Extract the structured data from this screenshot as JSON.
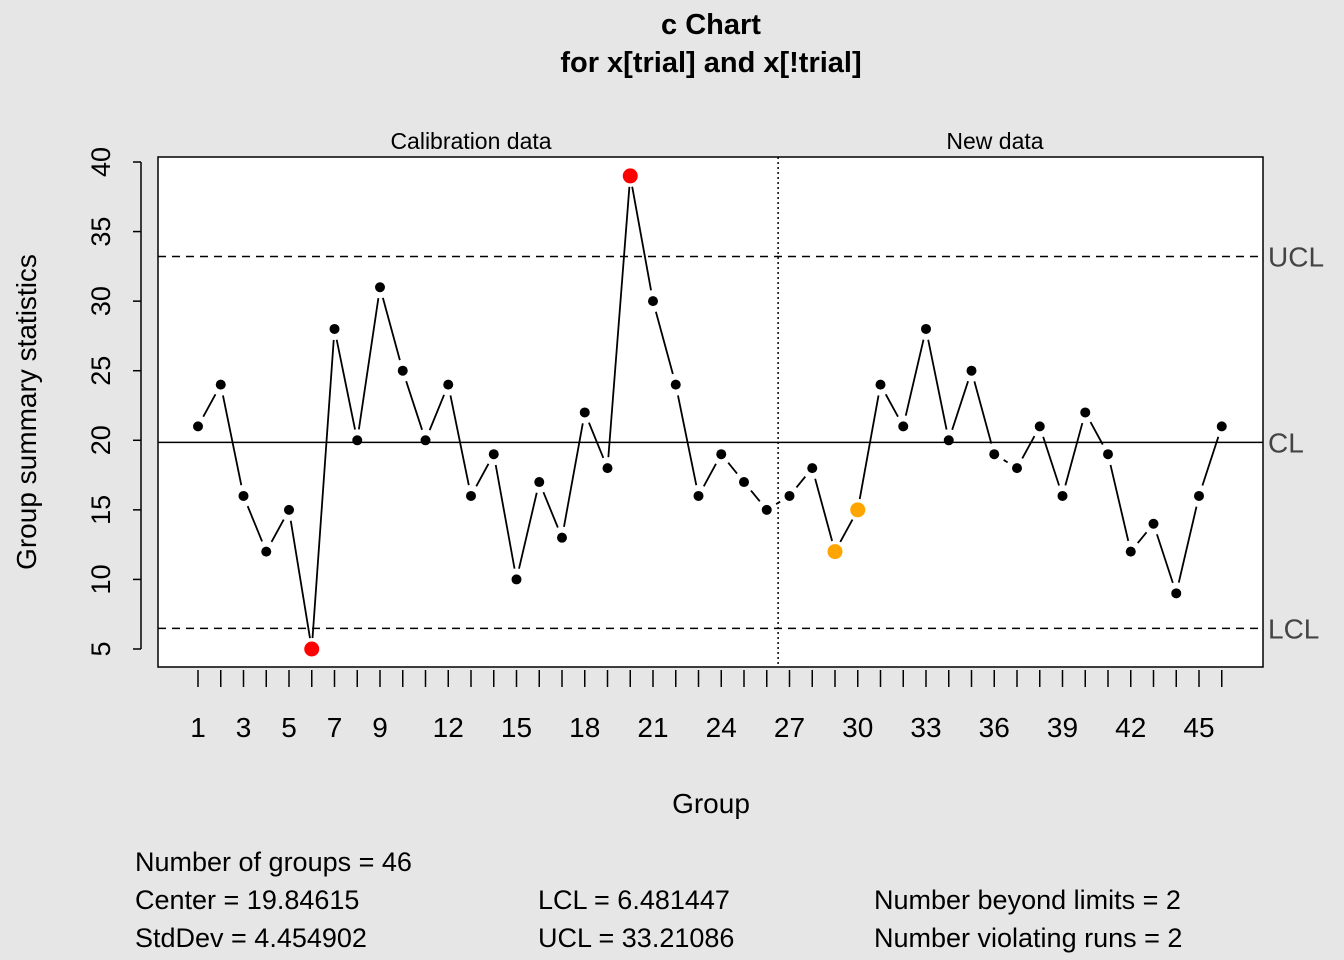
{
  "chart_data": {
    "type": "line",
    "title": "c Chart",
    "subtitle": "for x[trial] and x[!trial]",
    "xlabel": "Group",
    "ylabel": "Group summary statistics",
    "ylim": [
      5,
      40
    ],
    "yticks": [
      5,
      10,
      15,
      20,
      25,
      30,
      35,
      40
    ],
    "xtick_labels": [
      1,
      3,
      5,
      7,
      9,
      12,
      15,
      18,
      21,
      24,
      27,
      30,
      33,
      36,
      39,
      42,
      45
    ],
    "sections": [
      "Calibration data",
      "New data"
    ],
    "calibration_groups": 26,
    "x": [
      1,
      2,
      3,
      4,
      5,
      6,
      7,
      8,
      9,
      10,
      11,
      12,
      13,
      14,
      15,
      16,
      17,
      18,
      19,
      20,
      21,
      22,
      23,
      24,
      25,
      26,
      27,
      28,
      29,
      30,
      31,
      32,
      33,
      34,
      35,
      36,
      37,
      38,
      39,
      40,
      41,
      42,
      43,
      44,
      45,
      46
    ],
    "values": [
      21,
      24,
      16,
      12,
      15,
      5,
      28,
      20,
      31,
      25,
      20,
      24,
      16,
      19,
      10,
      17,
      13,
      22,
      18,
      39,
      30,
      24,
      16,
      19,
      17,
      15,
      16,
      18,
      12,
      15,
      24,
      21,
      28,
      20,
      25,
      19,
      18,
      21,
      16,
      22,
      19,
      12,
      14,
      9,
      16,
      21
    ],
    "beyond_limits": [
      6,
      20
    ],
    "violating_runs": [
      29,
      30
    ],
    "limits": {
      "UCL": 33.21086,
      "CL": 19.84615,
      "LCL": 6.481447
    },
    "limit_labels": {
      "UCL": "UCL",
      "CL": "CL",
      "LCL": "LCL"
    },
    "colors": {
      "point": "#000000",
      "beyond": "#ff0000",
      "violating": "#ffa500",
      "background": "#e6e6e6"
    }
  },
  "stats": {
    "groups": "Number of groups = 46",
    "center": "Center = 19.84615",
    "stddev": "StdDev = 4.454902",
    "lcl": "LCL = 6.481447",
    "ucl": "UCL = 33.21086",
    "beyond": "Number beyond limits = 2",
    "runs": "Number violating runs = 2"
  }
}
